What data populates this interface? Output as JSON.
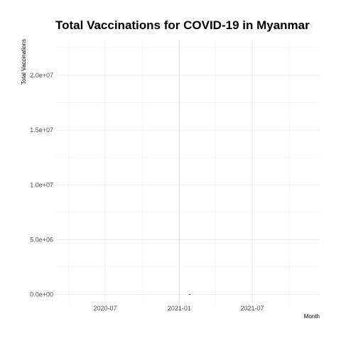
{
  "chart_data": {
    "type": "scatter",
    "title": "Total Vaccinations for COVID-19 in Myanmar",
    "xlabel": "Month",
    "ylabel": "Total Vaccinations",
    "x_ticks": [
      "2020-07",
      "2021-01",
      "2021-07"
    ],
    "y_ticks": [
      "0.0e+00",
      "5.0e+06",
      "1.0e+07",
      "1.5e+07",
      "2.0e+07"
    ],
    "ylim": [
      -750000,
      23250000
    ],
    "series": [
      {
        "x": [
          "2021-01-27"
        ],
        "y": [
          0
        ]
      }
    ],
    "grid": true,
    "theme": "minimal",
    "colors": {
      "grid": "#ebebeb",
      "point": "#000000",
      "tick_text": "#4d4d4d"
    }
  }
}
